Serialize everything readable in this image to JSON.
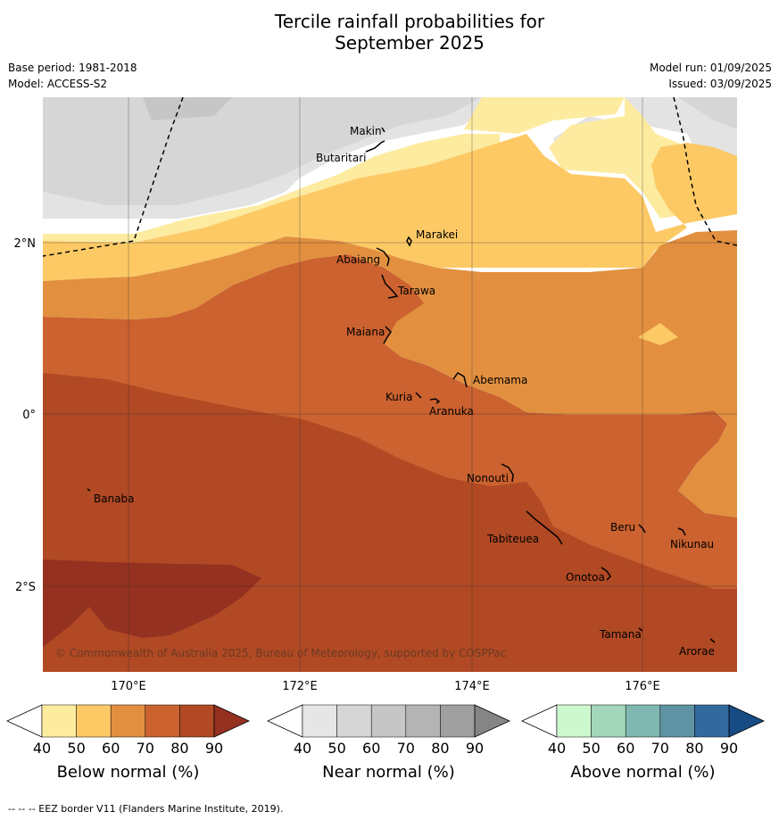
{
  "title_line1": "Tercile rainfall probabilities for",
  "title_line2": "September 2025",
  "meta": {
    "base_period": "Base period: 1981-2018",
    "model": "Model: ACCESS-S2",
    "model_run": "Model run: 01/09/2025",
    "issued": "Issued: 03/09/2025"
  },
  "axes": {
    "lat_labels": [
      "2°N",
      "0°",
      "2°S"
    ],
    "lon_labels": [
      "170°E",
      "172°E",
      "174°E",
      "176°E"
    ]
  },
  "places": {
    "makin": "Makin",
    "butaritari": "Butaritari",
    "marakei": "Marakei",
    "abaiang": "Abaiang",
    "tarawa": "Tarawa",
    "maiana": "Maiana",
    "abemama": "Abemama",
    "kuria": "Kuria",
    "aranuka": "Aranuka",
    "nonouti": "Nonouti",
    "banaba": "Banaba",
    "tabiteuea": "Tabiteuea",
    "beru": "Beru",
    "nikunau": "Nikunau",
    "onotoa": "Onotoa",
    "tamana": "Tamana",
    "arorae": "Arorae"
  },
  "copyright": "© Commonwealth of Australia 2025, Bureau of Meteorology, supported by COSPPac",
  "colorbars": {
    "ticks": [
      "40",
      "50",
      "60",
      "70",
      "80",
      "90"
    ],
    "below": {
      "title": "Below normal (%)",
      "colors": [
        "#fdeba0",
        "#fdc965",
        "#e2903f",
        "#cb622f",
        "#b04924",
        "#943120"
      ]
    },
    "near": {
      "title": "Near normal (%)",
      "colors": [
        "#e6e6e6",
        "#d6d6d6",
        "#c6c6c6",
        "#b4b4b4",
        "#9f9f9f",
        "#858585"
      ]
    },
    "above": {
      "title": "Above normal (%)",
      "colors": [
        "#cdf8cf",
        "#a3d6ba",
        "#7fb8b1",
        "#5e93a3",
        "#336a9e",
        "#174b84"
      ]
    }
  },
  "footer": "--  --  -- EEZ border V11 (Flanders Marine Institute, 2019)."
}
